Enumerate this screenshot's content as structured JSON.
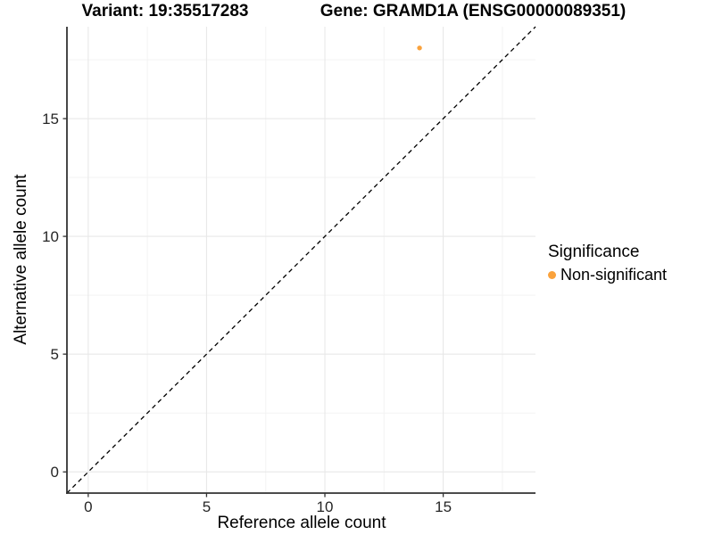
{
  "figure": {
    "title_variant": "Variant: 19:35517283",
    "title_gene": "Gene: GRAMD1A (ENSG00000089351)"
  },
  "legend": {
    "title": "Significance",
    "items": [
      {
        "label": "Non-significant",
        "color": "#FAA23C"
      }
    ]
  },
  "chart_data": {
    "type": "scatter",
    "title": "Variant: 19:35517283 | Gene: GRAMD1A (ENSG00000089351)",
    "xlabel": "Reference allele count",
    "ylabel": "Alternative allele count",
    "xlim": [
      -0.9,
      18.9
    ],
    "ylim": [
      -0.9,
      18.9
    ],
    "x_major_ticks": [
      0,
      5,
      10,
      15
    ],
    "y_major_ticks": [
      0,
      5,
      10,
      15
    ],
    "x_tick_labels": [
      "0",
      "5",
      "10",
      "15"
    ],
    "y_tick_labels": [
      "0",
      "5",
      "10",
      "15"
    ],
    "x_minor_ticks": [
      2.5,
      7.5,
      12.5,
      17.5
    ],
    "y_minor_ticks": [
      2.5,
      7.5,
      12.5,
      17.5
    ],
    "grid": "major+minor",
    "legend_position": "right",
    "series": [
      {
        "name": "Non-significant",
        "color": "#FAA23C",
        "points": [
          {
            "x": 14,
            "y": 18
          }
        ]
      }
    ],
    "reference_line": {
      "type": "identity y=x",
      "style": "dashed",
      "x1": -0.9,
      "y1": -0.9,
      "x2": 18.9,
      "y2": 18.9
    },
    "colors": {
      "grid_major": "#E8E8E8",
      "grid_minor": "#F3F3F3",
      "axis_line": "#333333",
      "tick_mark": "#333333",
      "dashed_line": "#000000",
      "point": "#FAA23C",
      "background": "#FFFFFF"
    }
  }
}
